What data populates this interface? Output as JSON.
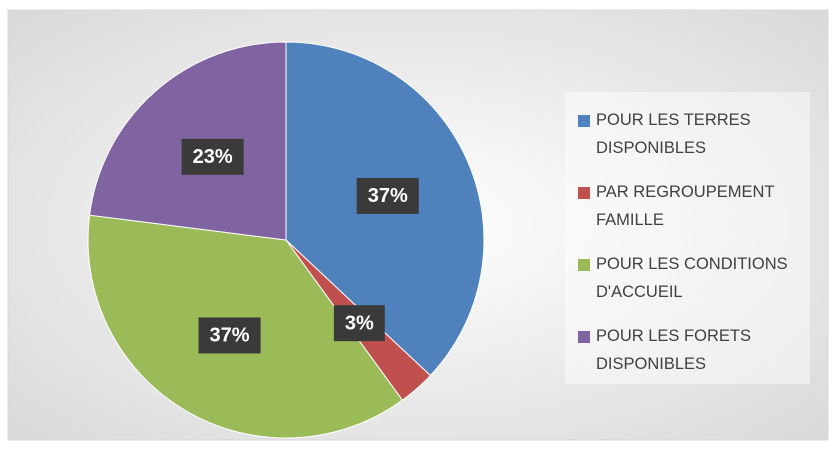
{
  "chart_data": {
    "type": "pie",
    "categories": [
      "POUR LES TERRES DISPONIBLES",
      "PAR REGROUPEMENT FAMILLE",
      "POUR LES CONDITIONS D'ACCUEIL",
      "POUR LES FORETS DISPONIBLES"
    ],
    "values": [
      37,
      3,
      37,
      23
    ],
    "value_labels": [
      "37%",
      "3%",
      "37%",
      "23%"
    ],
    "colors": [
      "#4f81bd",
      "#c0504d",
      "#9bbb59",
      "#8064a2"
    ],
    "legend": "right"
  }
}
